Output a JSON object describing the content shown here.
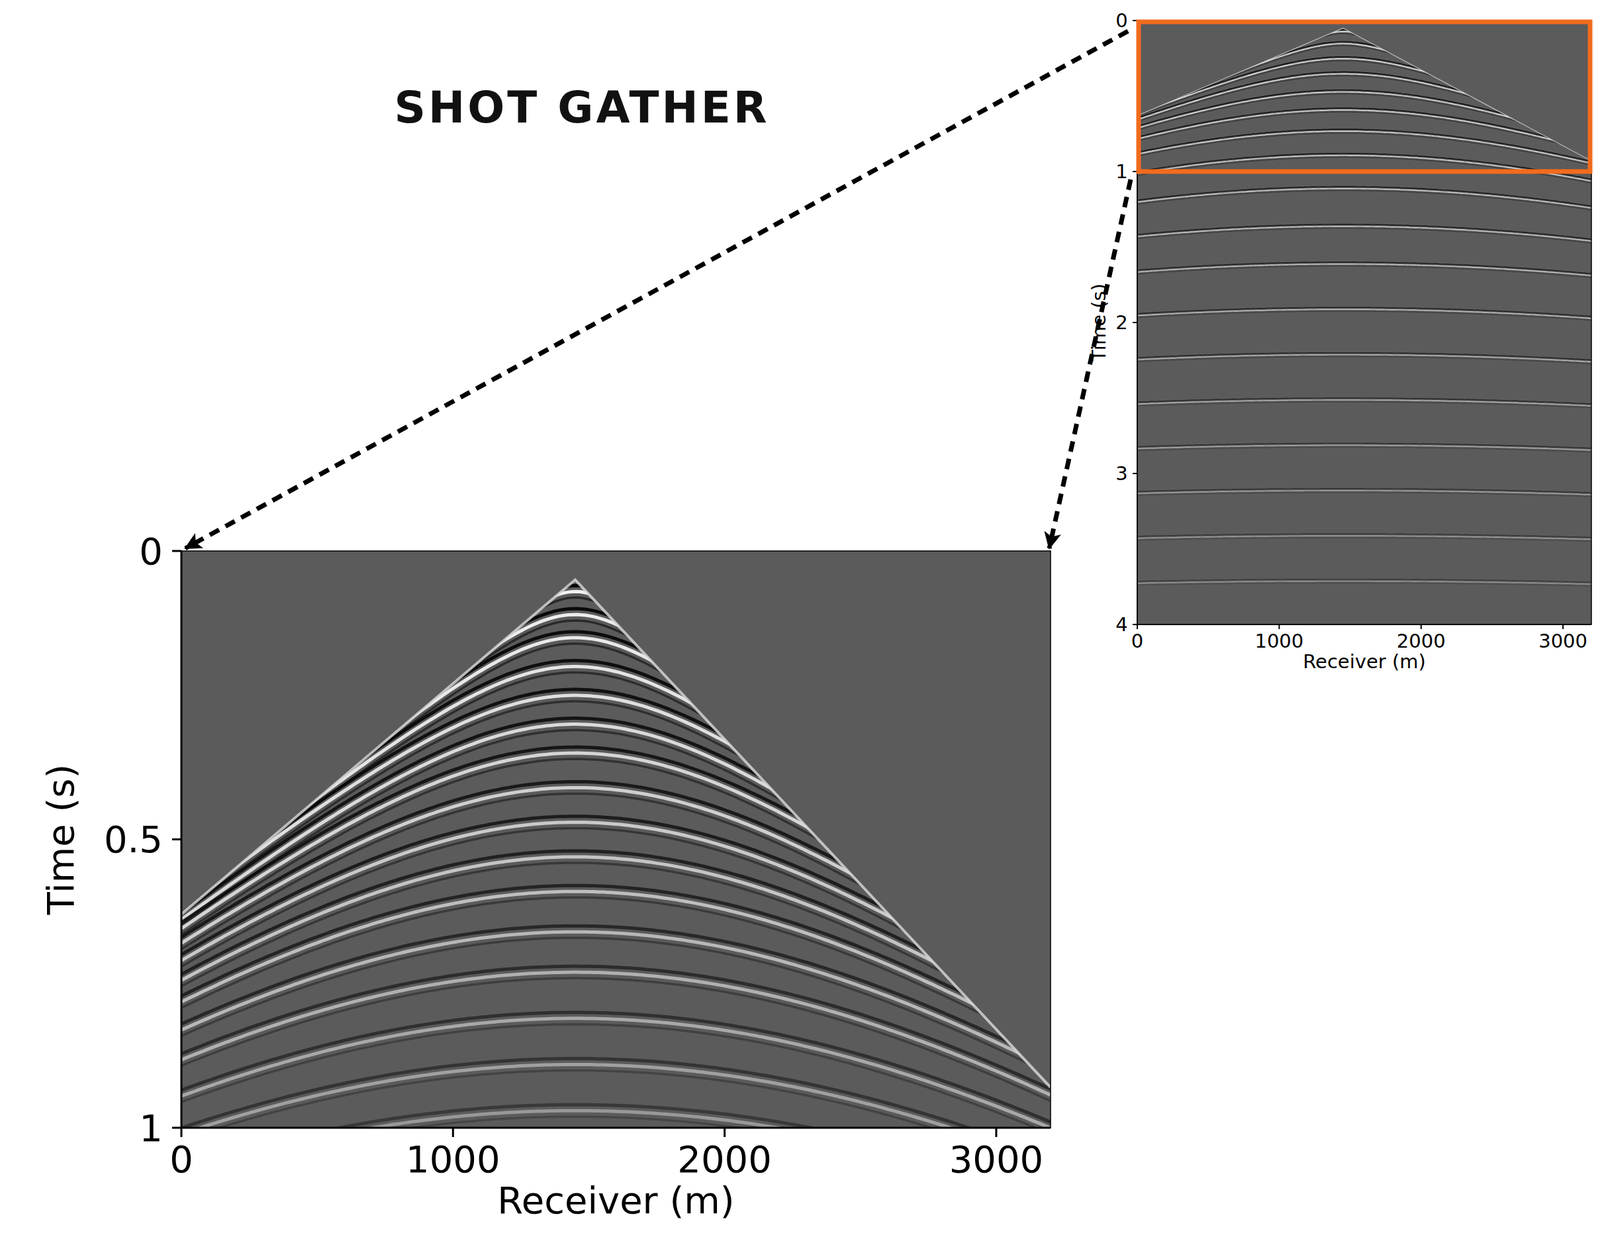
{
  "title": "SHOT GATHER",
  "chart_data": [
    {
      "type": "seismic_image",
      "x_label": "Receiver (m)",
      "y_label": "Time (s)",
      "xlim": [
        0,
        3200
      ],
      "xticks": [
        0,
        1000,
        2000,
        3000
      ],
      "ylim": [
        0,
        1
      ],
      "yticks": [
        0,
        0.5,
        1
      ],
      "source_x": 1450,
      "first_arrivals": {
        "x": [
          0,
          1450,
          3200
        ],
        "t": [
          0.63,
          0.05,
          0.93
        ]
      },
      "reflection_t0": [
        0.06,
        0.1,
        0.14,
        0.19,
        0.24,
        0.29,
        0.34,
        0.4,
        0.46,
        0.52,
        0.58,
        0.65,
        0.72,
        0.8,
        0.88,
        0.96
      ],
      "reflection_velocity": [
        2450,
        2500,
        2500,
        2550,
        2600,
        2600,
        2650,
        2700,
        2750,
        2800,
        2850,
        2900,
        2950,
        3000,
        3050,
        3100
      ]
    },
    {
      "type": "seismic_image",
      "x_label": "Receiver (m)",
      "y_label": "Time (s)",
      "xlim": [
        0,
        3200
      ],
      "xticks": [
        0,
        1000,
        2000,
        3000
      ],
      "ylim": [
        0,
        4
      ],
      "yticks": [
        0,
        1,
        2,
        3,
        4
      ],
      "source_x": 1450,
      "first_arrivals": {
        "x": [
          0,
          1450,
          3200
        ],
        "t": [
          0.63,
          0.05,
          0.93
        ]
      },
      "reflection_t0": [
        0.06,
        0.14,
        0.24,
        0.34,
        0.46,
        0.58,
        0.72,
        0.88,
        1.1,
        1.35,
        1.6,
        1.9,
        2.2,
        2.5,
        2.8,
        3.1,
        3.4,
        3.7
      ],
      "reflection_velocity": [
        2450,
        2500,
        2600,
        2650,
        2750,
        2850,
        2950,
        3050,
        3200,
        3350,
        3500,
        3650,
        3800,
        3950,
        4100,
        4250,
        4400,
        4550
      ],
      "zoom_box": {
        "ylim": [
          0,
          1
        ],
        "color": "#f26b1d"
      }
    }
  ]
}
